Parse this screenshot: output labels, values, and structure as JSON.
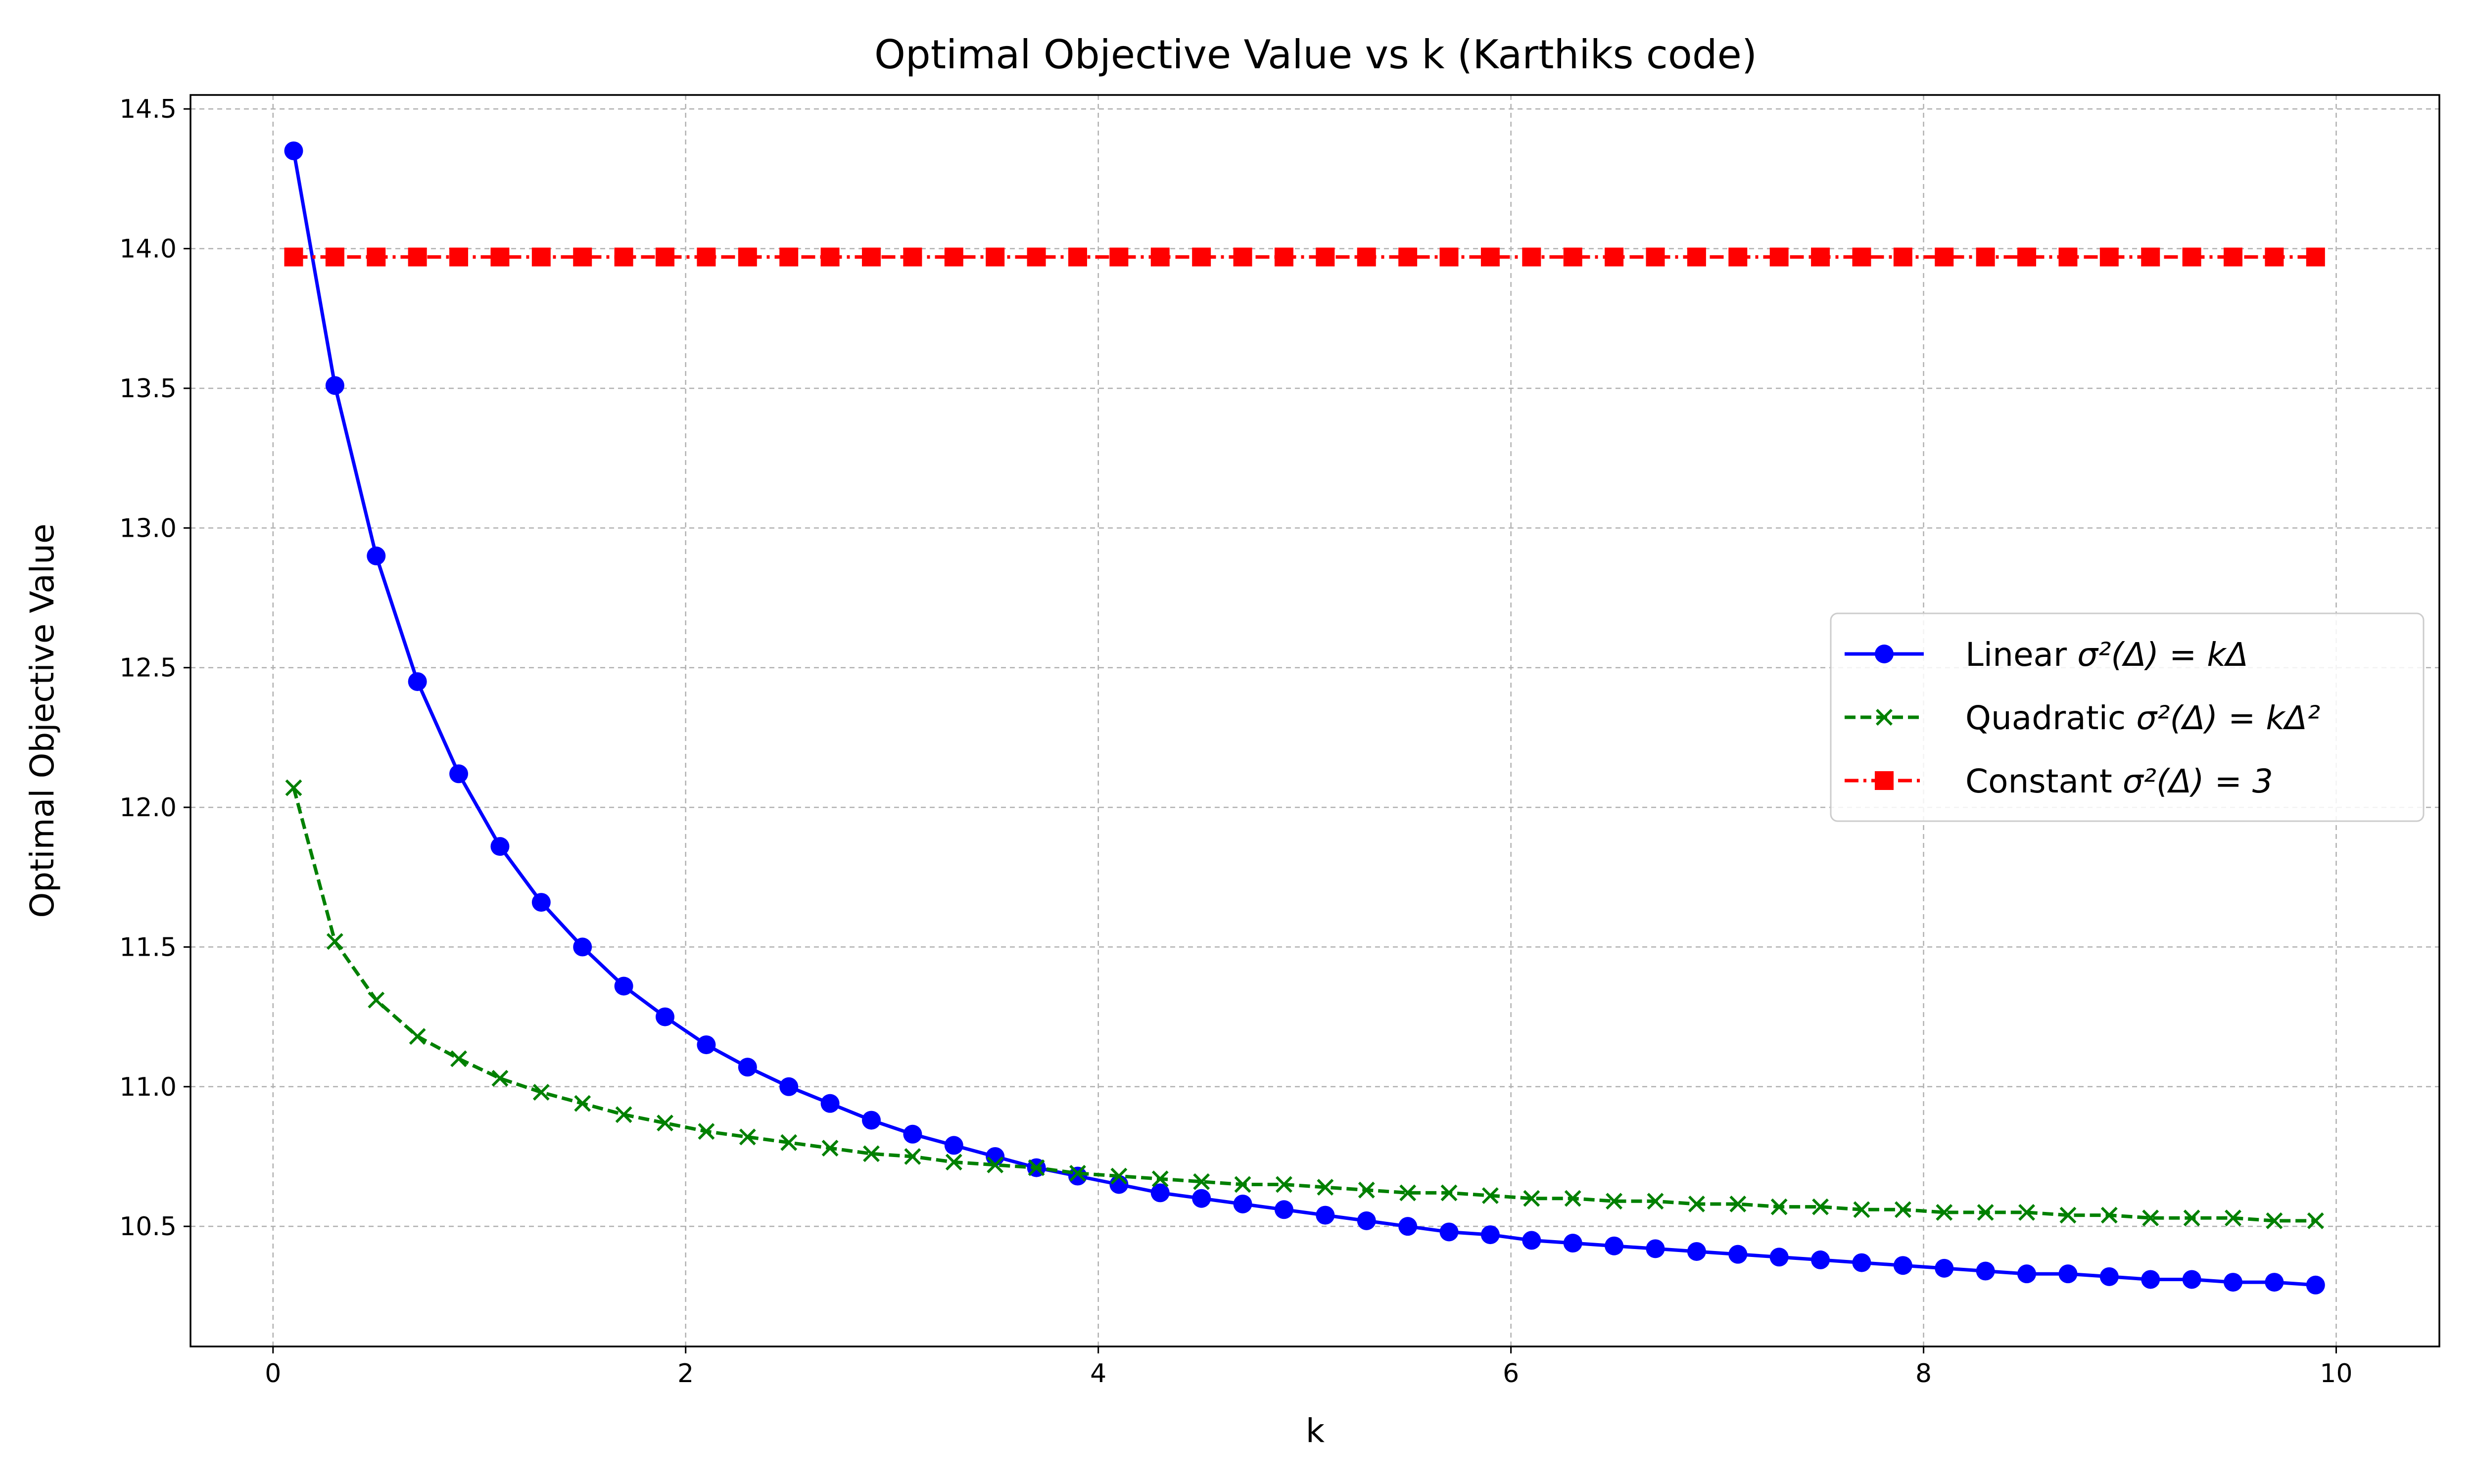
{
  "chart_data": {
    "type": "line",
    "title": "Optimal Objective Value vs k (Karthiks code)",
    "xlabel": "k",
    "ylabel": "Optimal Objective Value",
    "xlim": [
      -0.4,
      10.5
    ],
    "ylim": [
      10.07,
      14.55
    ],
    "xticks": [
      0,
      2,
      4,
      6,
      8,
      10
    ],
    "yticks": [
      10.5,
      11.0,
      11.5,
      12.0,
      12.5,
      13.0,
      13.5,
      14.0,
      14.5
    ],
    "xtick_labels": [
      "0",
      "2",
      "4",
      "6",
      "8",
      "10"
    ],
    "ytick_labels": [
      "10.5",
      "11.0",
      "11.5",
      "12.0",
      "12.5",
      "13.0",
      "13.5",
      "14.0",
      "14.5"
    ],
    "grid": true,
    "legend_position": "center-right",
    "x": [
      0.1,
      0.3,
      0.5,
      0.7,
      0.9,
      1.1,
      1.3,
      1.5,
      1.7,
      1.9,
      2.1,
      2.3,
      2.5,
      2.7,
      2.9,
      3.1,
      3.3,
      3.5,
      3.7,
      3.9,
      4.1,
      4.3,
      4.5,
      4.7,
      4.9,
      5.1,
      5.3,
      5.5,
      5.7,
      5.9,
      6.1,
      6.3,
      6.5,
      6.7,
      6.9,
      7.1,
      7.3,
      7.5,
      7.7,
      7.9,
      8.1,
      8.3,
      8.5,
      8.7,
      8.9,
      9.1,
      9.3,
      9.5,
      9.7,
      9.9
    ],
    "series": [
      {
        "name": "Linear σ²(Δ) = kΔ",
        "legend_prefix": "Linear ",
        "legend_formula": "σ²(Δ) = kΔ",
        "color": "#0000ff",
        "marker": "circle",
        "line_style": "solid",
        "values": [
          14.35,
          13.51,
          12.9,
          12.45,
          12.12,
          11.86,
          11.66,
          11.5,
          11.36,
          11.25,
          11.15,
          11.07,
          11.0,
          10.94,
          10.88,
          10.83,
          10.79,
          10.75,
          10.71,
          10.68,
          10.65,
          10.62,
          10.6,
          10.58,
          10.56,
          10.54,
          10.52,
          10.5,
          10.48,
          10.47,
          10.45,
          10.44,
          10.43,
          10.42,
          10.41,
          10.4,
          10.39,
          10.38,
          10.37,
          10.36,
          10.35,
          10.34,
          10.33,
          10.33,
          10.32,
          10.31,
          10.31,
          10.3,
          10.3,
          10.29
        ]
      },
      {
        "name": "Quadratic σ²(Δ) = kΔ²",
        "legend_prefix": "Quadratic ",
        "legend_formula": "σ²(Δ) = kΔ²",
        "color": "#008000",
        "marker": "x",
        "line_style": "dashed",
        "values": [
          12.07,
          11.52,
          11.31,
          11.18,
          11.1,
          11.03,
          10.98,
          10.94,
          10.9,
          10.87,
          10.84,
          10.82,
          10.8,
          10.78,
          10.76,
          10.75,
          10.73,
          10.72,
          10.71,
          10.69,
          10.68,
          10.67,
          10.66,
          10.65,
          10.65,
          10.64,
          10.63,
          10.62,
          10.62,
          10.61,
          10.6,
          10.6,
          10.59,
          10.59,
          10.58,
          10.58,
          10.57,
          10.57,
          10.56,
          10.56,
          10.55,
          10.55,
          10.55,
          10.54,
          10.54,
          10.53,
          10.53,
          10.53,
          10.52,
          10.52
        ]
      },
      {
        "name": "Constant σ²(Δ) = 3",
        "legend_prefix": "Constant ",
        "legend_formula": "σ²(Δ) = 3",
        "color": "#ff0000",
        "marker": "square",
        "line_style": "dashdot",
        "values": [
          13.97,
          13.97,
          13.97,
          13.97,
          13.97,
          13.97,
          13.97,
          13.97,
          13.97,
          13.97,
          13.97,
          13.97,
          13.97,
          13.97,
          13.97,
          13.97,
          13.97,
          13.97,
          13.97,
          13.97,
          13.97,
          13.97,
          13.97,
          13.97,
          13.97,
          13.97,
          13.97,
          13.97,
          13.97,
          13.97,
          13.97,
          13.97,
          13.97,
          13.97,
          13.97,
          13.97,
          13.97,
          13.97,
          13.97,
          13.97,
          13.97,
          13.97,
          13.97,
          13.97,
          13.97,
          13.97,
          13.97,
          13.97,
          13.97,
          13.97
        ]
      }
    ]
  }
}
